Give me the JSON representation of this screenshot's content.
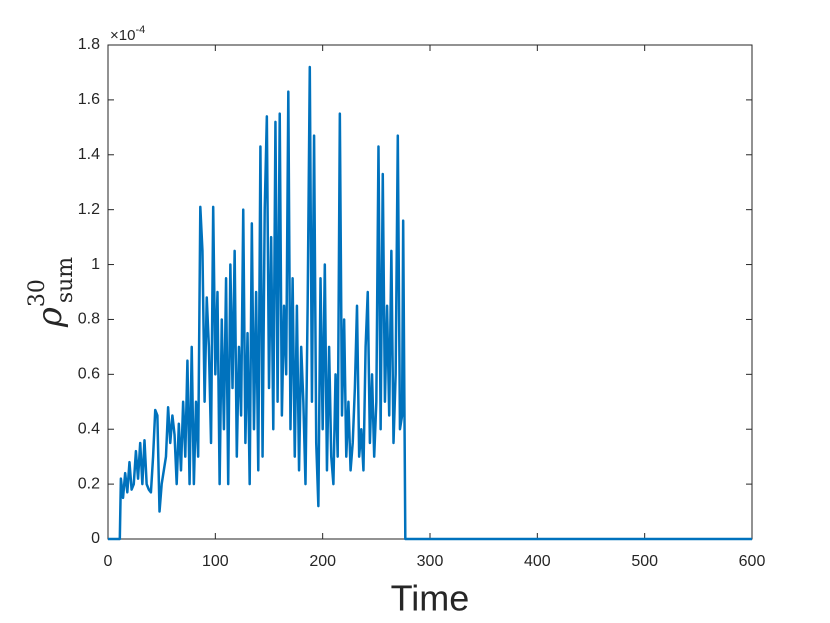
{
  "chart_data": {
    "type": "line",
    "xlabel": "Time",
    "ylabel": {
      "base": "ρ",
      "superscript": "30",
      "subscript": "sum"
    },
    "y_multiplier": {
      "base": "×10",
      "exponent": "-4"
    },
    "color": "#0072bd",
    "xlim": [
      0,
      600
    ],
    "xticks": [
      0,
      100,
      200,
      300,
      400,
      500,
      600
    ],
    "ylim": [
      0,
      1.8
    ],
    "yticks": [
      0,
      0.2,
      0.4,
      0.6,
      0.8,
      1,
      1.2,
      1.4,
      1.6,
      1.8
    ],
    "grid": false,
    "x": [
      0,
      11,
      12,
      14,
      16,
      18,
      20,
      22,
      24,
      26,
      28,
      30,
      32,
      34,
      36,
      38,
      40,
      42,
      44,
      46,
      48,
      50,
      52,
      54,
      56,
      58,
      60,
      62,
      64,
      66,
      68,
      70,
      72,
      74,
      76,
      78,
      80,
      82,
      84,
      86,
      88,
      90,
      92,
      94,
      96,
      98,
      100,
      102,
      104,
      106,
      108,
      110,
      112,
      114,
      116,
      118,
      120,
      122,
      124,
      126,
      128,
      130,
      132,
      134,
      136,
      138,
      140,
      142,
      144,
      146,
      148,
      150,
      152,
      154,
      156,
      158,
      160,
      162,
      164,
      166,
      168,
      170,
      172,
      174,
      176,
      178,
      180,
      182,
      184,
      186,
      188,
      190,
      192,
      194,
      196,
      198,
      200,
      202,
      204,
      206,
      208,
      210,
      212,
      214,
      216,
      218,
      220,
      222,
      224,
      226,
      228,
      230,
      232,
      234,
      236,
      238,
      240,
      242,
      244,
      246,
      248,
      250,
      252,
      254,
      256,
      258,
      260,
      262,
      264,
      266,
      268,
      270,
      272,
      274,
      275,
      277,
      600
    ],
    "values": [
      0,
      0,
      0.22,
      0.15,
      0.24,
      0.17,
      0.28,
      0.18,
      0.2,
      0.32,
      0.22,
      0.35,
      0.2,
      0.36,
      0.2,
      0.18,
      0.17,
      0.3,
      0.47,
      0.45,
      0.1,
      0.2,
      0.25,
      0.3,
      0.48,
      0.35,
      0.45,
      0.38,
      0.2,
      0.42,
      0.25,
      0.5,
      0.3,
      0.65,
      0.2,
      0.7,
      0.2,
      0.5,
      0.3,
      1.21,
      1.05,
      0.5,
      0.88,
      0.7,
      0.35,
      1.21,
      0.6,
      0.9,
      0.2,
      0.8,
      0.4,
      0.95,
      0.2,
      1.0,
      0.55,
      1.05,
      0.3,
      0.7,
      0.45,
      1.2,
      0.35,
      0.75,
      0.2,
      1.15,
      0.4,
      0.9,
      0.25,
      1.43,
      0.3,
      1.2,
      1.54,
      0.55,
      1.1,
      0.4,
      1.52,
      0.5,
      1.55,
      0.45,
      0.85,
      0.6,
      1.63,
      0.4,
      0.95,
      0.3,
      0.85,
      0.25,
      0.7,
      0.5,
      0.2,
      0.85,
      1.72,
      0.5,
      1.47,
      0.35,
      0.12,
      0.95,
      0.4,
      1.0,
      0.25,
      0.7,
      0.3,
      0.2,
      0.6,
      0.3,
      1.55,
      0.45,
      0.8,
      0.3,
      0.5,
      0.25,
      0.35,
      0.55,
      0.85,
      0.3,
      0.4,
      0.25,
      0.7,
      0.9,
      0.35,
      0.6,
      0.3,
      0.5,
      1.43,
      0.4,
      1.33,
      0.5,
      0.85,
      0.45,
      1.05,
      0.35,
      0.6,
      1.47,
      0.4,
      0.45,
      1.16,
      0,
      0
    ]
  }
}
